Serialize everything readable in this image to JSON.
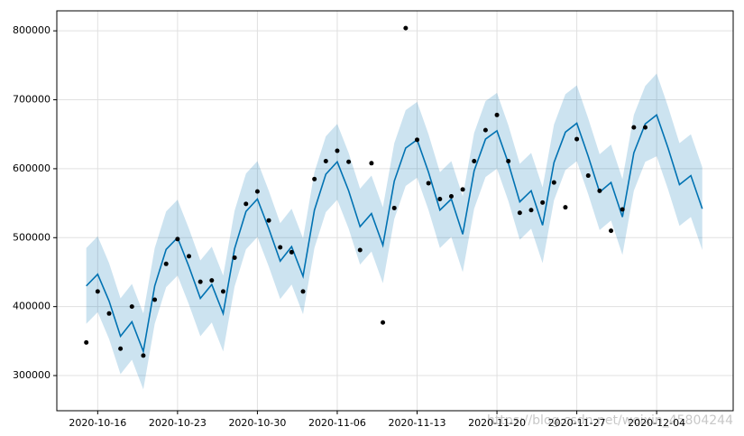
{
  "chart_data": {
    "type": "forecast",
    "x": [
      "2020-10-15",
      "2020-10-16",
      "2020-10-17",
      "2020-10-18",
      "2020-10-19",
      "2020-10-20",
      "2020-10-21",
      "2020-10-22",
      "2020-10-23",
      "2020-10-24",
      "2020-10-25",
      "2020-10-26",
      "2020-10-27",
      "2020-10-28",
      "2020-10-29",
      "2020-10-30",
      "2020-10-31",
      "2020-11-01",
      "2020-11-02",
      "2020-11-03",
      "2020-11-04",
      "2020-11-05",
      "2020-11-06",
      "2020-11-07",
      "2020-11-08",
      "2020-11-09",
      "2020-11-10",
      "2020-11-11",
      "2020-11-12",
      "2020-11-13",
      "2020-11-14",
      "2020-11-15",
      "2020-11-16",
      "2020-11-17",
      "2020-11-18",
      "2020-11-19",
      "2020-11-20",
      "2020-11-21",
      "2020-11-22",
      "2020-11-23",
      "2020-11-24",
      "2020-11-25",
      "2020-11-26",
      "2020-11-27",
      "2020-11-28",
      "2020-11-29",
      "2020-11-30",
      "2020-12-01",
      "2020-12-02",
      "2020-12-03",
      "2020-12-04",
      "2020-12-05",
      "2020-12-06",
      "2020-12-07",
      "2020-12-08"
    ],
    "observed": {
      "color": "#000000",
      "values": [
        348000,
        422000,
        390000,
        339000,
        400000,
        329000,
        410000,
        462000,
        498000,
        473000,
        436000,
        438000,
        422000,
        471000,
        549000,
        567000,
        525000,
        486000,
        479000,
        422000,
        585000,
        611000,
        626000,
        610000,
        482000,
        608000,
        377000,
        543000,
        804000,
        642000,
        579000,
        556000,
        560000,
        570000,
        611000,
        656000,
        678000,
        611000,
        536000,
        540000,
        551000,
        580000,
        544000,
        643000,
        590000,
        568000,
        510000,
        541000,
        660000,
        660000,
        null,
        null,
        null,
        null,
        null
      ]
    },
    "forecast": {
      "color": "#0072b2",
      "values": [
        430000,
        447000,
        408000,
        357000,
        378000,
        335000,
        430000,
        483000,
        500000,
        458000,
        412000,
        432000,
        390000,
        484000,
        538000,
        556000,
        513000,
        466000,
        487000,
        444000,
        540000,
        592000,
        610000,
        568000,
        516000,
        535000,
        489000,
        582000,
        630000,
        642000,
        595000,
        540000,
        556000,
        505000,
        597000,
        643000,
        655000,
        608000,
        552000,
        568000,
        518000,
        609000,
        653000,
        666000,
        618000,
        566000,
        580000,
        530000,
        623000,
        665000,
        678000,
        630000,
        577000,
        590000,
        542000
      ]
    },
    "interval": {
      "color": "#0072b2",
      "lower": [
        375000,
        392000,
        353000,
        302000,
        323000,
        280000,
        375000,
        428000,
        445000,
        403000,
        357000,
        377000,
        335000,
        429000,
        483000,
        501000,
        458000,
        411000,
        432000,
        389000,
        485000,
        537000,
        555000,
        513000,
        461000,
        480000,
        434000,
        527000,
        575000,
        587000,
        540000,
        485000,
        501000,
        450000,
        542000,
        588000,
        600000,
        553000,
        497000,
        513000,
        463000,
        554000,
        598000,
        611000,
        563000,
        511000,
        525000,
        475000,
        568000,
        610000,
        618000,
        570000,
        517000,
        530000,
        482000
      ],
      "upper": [
        485000,
        502000,
        463000,
        412000,
        433000,
        390000,
        485000,
        538000,
        555000,
        513000,
        467000,
        487000,
        445000,
        539000,
        593000,
        611000,
        568000,
        521000,
        542000,
        499000,
        595000,
        647000,
        665000,
        623000,
        571000,
        590000,
        544000,
        637000,
        685000,
        697000,
        650000,
        595000,
        611000,
        560000,
        652000,
        698000,
        710000,
        663000,
        607000,
        623000,
        573000,
        664000,
        708000,
        721000,
        673000,
        621000,
        635000,
        585000,
        678000,
        720000,
        738000,
        690000,
        637000,
        650000,
        602000
      ]
    },
    "xlim": [
      "2020-10-12T10:00",
      "2020-12-10T17:00"
    ],
    "xticks": [
      "2020-10-16",
      "2020-10-23",
      "2020-10-30",
      "2020-11-06",
      "2020-11-13",
      "2020-11-20",
      "2020-11-27",
      "2020-12-04"
    ],
    "ylim": [
      249000,
      829000
    ],
    "yticks": [
      300000,
      400000,
      500000,
      600000,
      700000,
      800000
    ],
    "grid": true,
    "watermark": "https://blog.csdn.net/weixin_45804244"
  }
}
